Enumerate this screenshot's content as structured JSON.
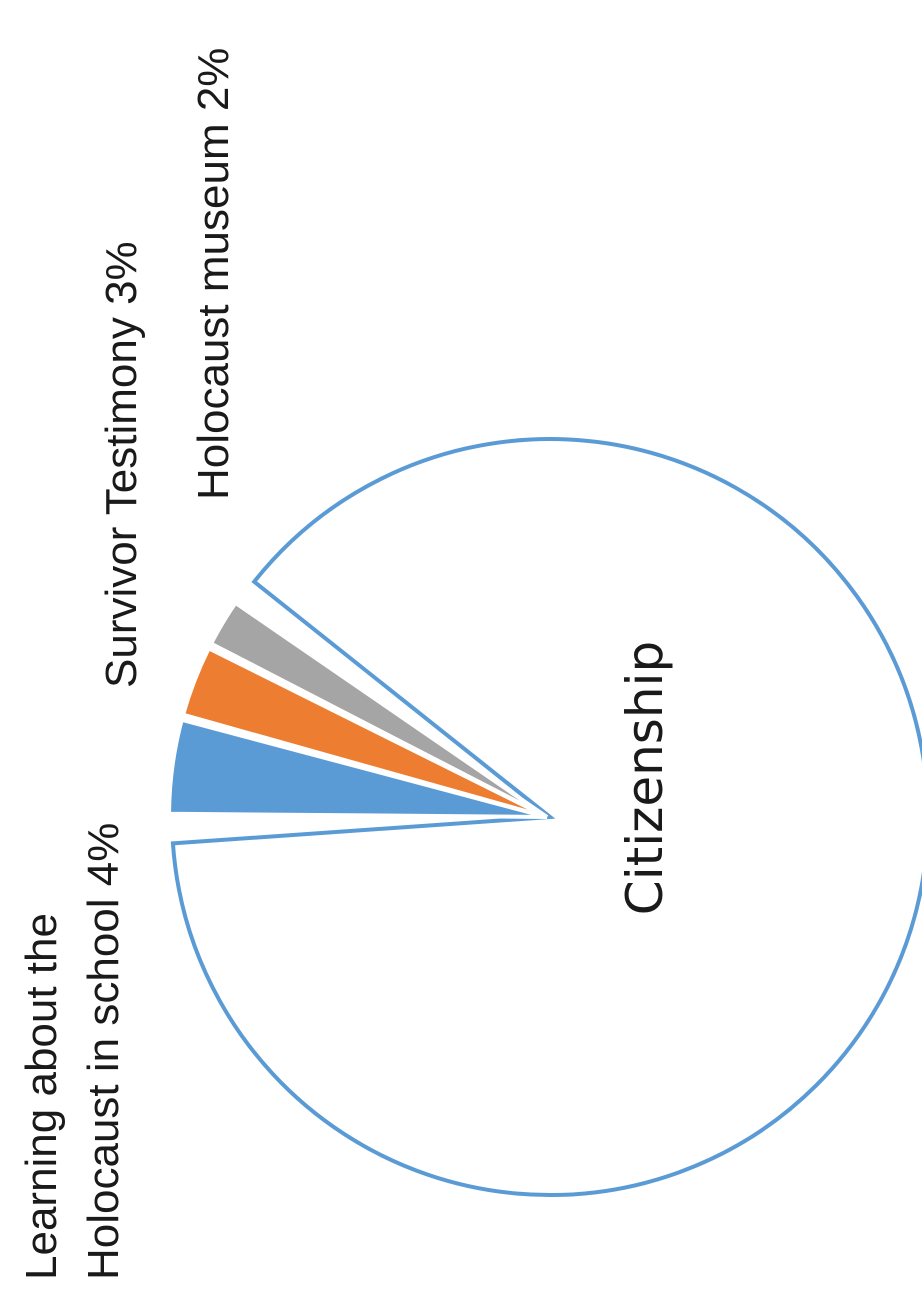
{
  "chart_data": {
    "type": "pie",
    "title": "",
    "slices": [
      {
        "label": "Citizenship",
        "value": 91,
        "color": "#ffffff",
        "stroke": "#5b9bd5",
        "label_text": "Citizenship"
      },
      {
        "label": "Learning about the Holocaust in school",
        "value": 4,
        "color": "#5b9bd5",
        "label_lines": [
          "Learning about the",
          "Holocaust in school 4%"
        ]
      },
      {
        "label": "Survivor Testimony",
        "value": 3,
        "color": "#ed7d31",
        "label_lines": [
          "Survivor Testimony 3%"
        ]
      },
      {
        "label": "Holocaust museum",
        "value": 2,
        "color": "#a5a5a5",
        "label_lines": [
          "Holocaust museum 2%"
        ]
      }
    ],
    "orientation": "rotated 90° counter-clockwise",
    "legend": "none"
  }
}
